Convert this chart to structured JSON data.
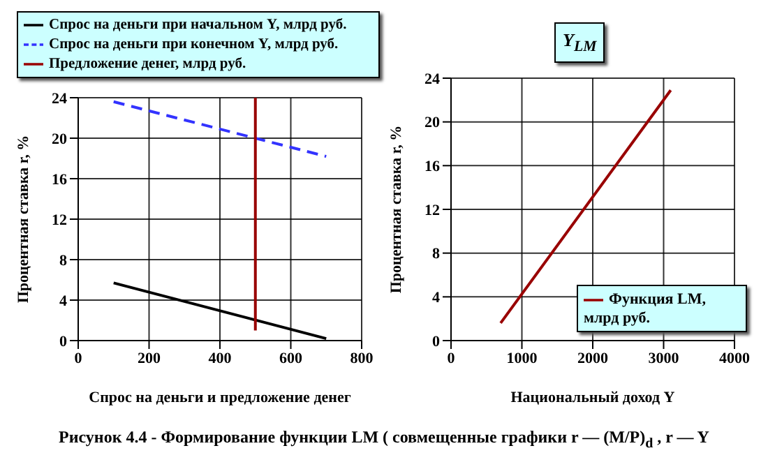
{
  "chart_data": [
    {
      "type": "line",
      "xlabel": "Спрос на деньги и предложение денег",
      "ylabel": "Процентная ставка r, %",
      "xlim": [
        0,
        800
      ],
      "xticks": [
        0,
        200,
        400,
        600,
        800
      ],
      "ylim": [
        0,
        24
      ],
      "yticks": [
        0,
        4,
        8,
        12,
        16,
        20,
        24
      ],
      "grid": true,
      "legend": "top",
      "marker": "none",
      "series": [
        {
          "name": "Спрос на деньги при начальном Y, млрд руб.",
          "color": "#000000",
          "x": [
            100,
            700
          ],
          "values": [
            5.7,
            0.2
          ],
          "line_style": "solid"
        },
        {
          "name": "Спрос на деньги при конечном Y, млрд руб.",
          "color": "#3333ff",
          "x": [
            100,
            700
          ],
          "values": [
            23.6,
            18.2
          ],
          "line_style": "dashed"
        },
        {
          "name": "Предложение денег, млрд руб.",
          "color": "#990000",
          "x": [
            500,
            500
          ],
          "values": [
            1,
            24
          ],
          "line_style": "solid"
        }
      ]
    },
    {
      "type": "line",
      "title": "Y$_{LM}$",
      "xlabel": "Национальный доход Y",
      "ylabel": "Процентная ставка r, %",
      "xlim": [
        0,
        4000
      ],
      "xticks": [
        0,
        1000,
        2000,
        3000,
        4000
      ],
      "ylim": [
        0,
        24
      ],
      "yticks": [
        0,
        4,
        8,
        12,
        16,
        20,
        24
      ],
      "grid": true,
      "legend": "bottom right",
      "marker": "none",
      "annotations": [
        "Рисунок 4.4 -  Формирование функции LM ( совмещенные графики r — (M/P)$_{d}$ , r — Y"
      ],
      "series": [
        {
          "name": "Функция LM, млрд руб.",
          "color": "#990000",
          "x": [
            700,
            3100
          ],
          "values": [
            1.6,
            22.9
          ],
          "line_style": "solid"
        }
      ]
    }
  ]
}
